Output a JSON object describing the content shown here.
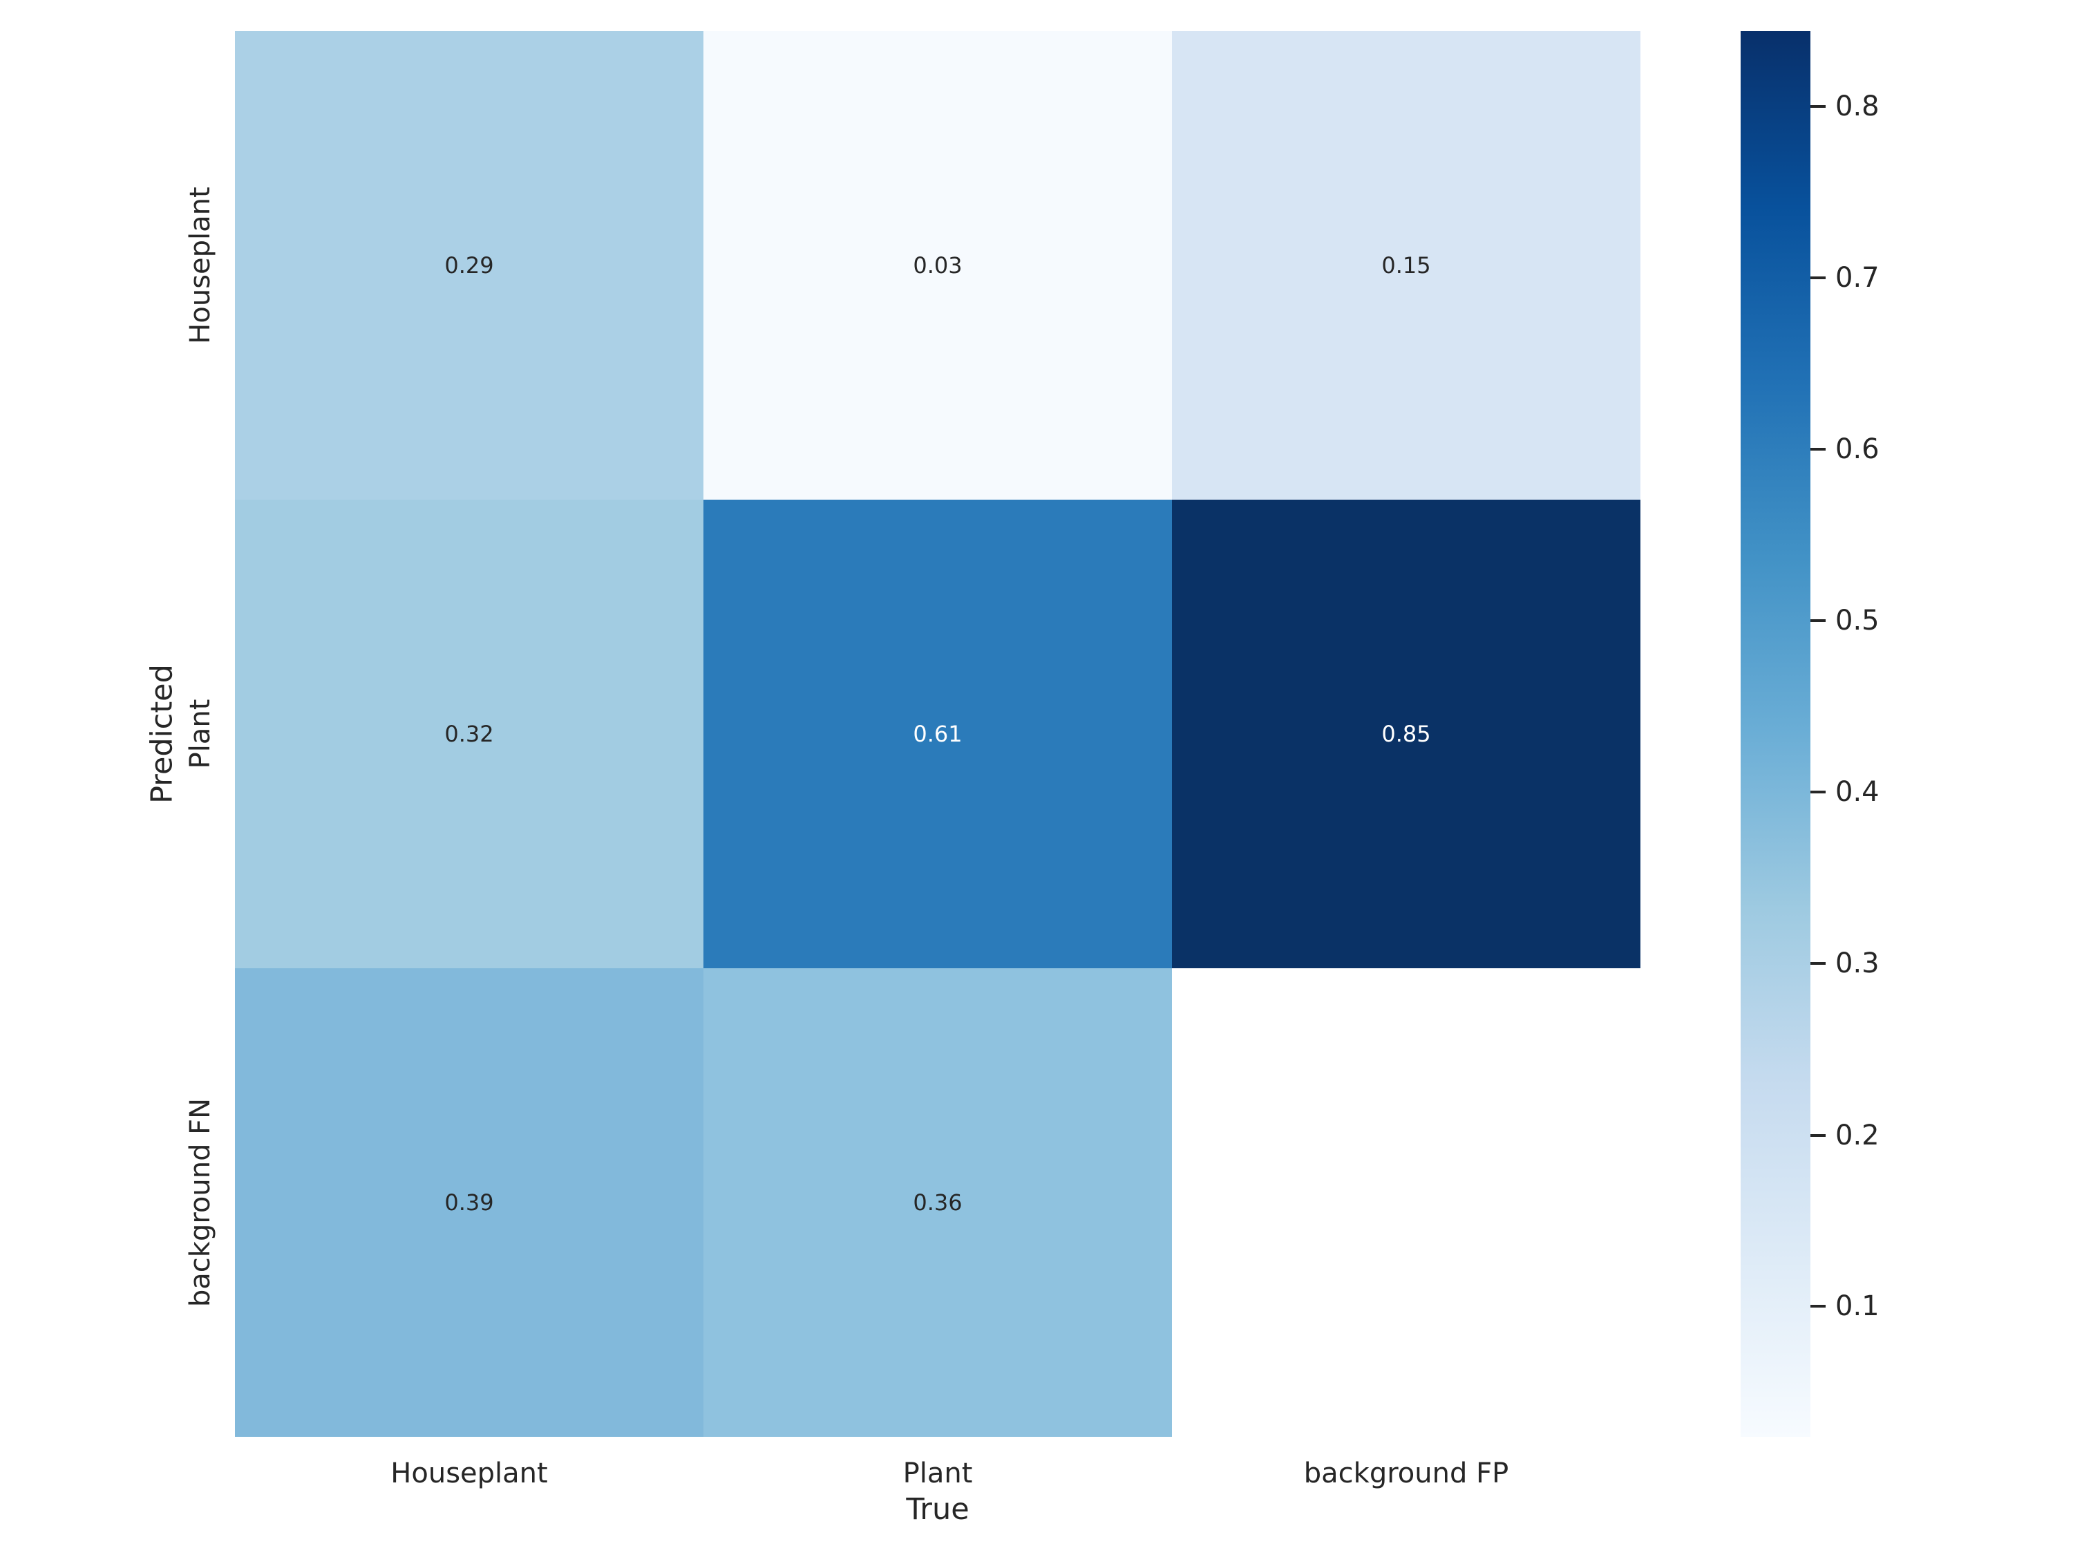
{
  "chart_data": {
    "type": "heatmap",
    "title": "",
    "xlabel": "True",
    "ylabel": "Predicted",
    "x_categories": [
      "Houseplant",
      "Plant",
      "background FP"
    ],
    "y_categories": [
      "Houseplant",
      "Plant",
      "background FN"
    ],
    "colormap": "Blues",
    "grid": false,
    "cells": [
      {
        "row": "Houseplant",
        "col": "Houseplant",
        "value": 0.29,
        "label": "0.29",
        "bg": "#abd0e6",
        "fg": "#262626"
      },
      {
        "row": "Houseplant",
        "col": "Plant",
        "value": 0.03,
        "label": "0.03",
        "bg": "#f6fafe",
        "fg": "#262626"
      },
      {
        "row": "Houseplant",
        "col": "background FP",
        "value": 0.15,
        "label": "0.15",
        "bg": "#d7e5f4",
        "fg": "#262626"
      },
      {
        "row": "Plant",
        "col": "Houseplant",
        "value": 0.32,
        "label": "0.32",
        "bg": "#a2cce2",
        "fg": "#262626"
      },
      {
        "row": "Plant",
        "col": "Plant",
        "value": 0.61,
        "label": "0.61",
        "bg": "#2b7bba",
        "fg": "#ffffff"
      },
      {
        "row": "Plant",
        "col": "background FP",
        "value": 0.85,
        "label": "0.85",
        "bg": "#0a3266",
        "fg": "#ffffff"
      },
      {
        "row": "background FN",
        "col": "Houseplant",
        "value": 0.39,
        "label": "0.39",
        "bg": "#82b9db",
        "fg": "#262626"
      },
      {
        "row": "background FN",
        "col": "Plant",
        "value": 0.36,
        "label": "0.36",
        "bg": "#8fc2df",
        "fg": "#262626"
      },
      {
        "row": "background FN",
        "col": "background FP",
        "value": null,
        "label": "",
        "bg": "#ffffff",
        "fg": "#262626"
      }
    ],
    "colorbar": {
      "vmin": 0.024,
      "vmax": 0.844,
      "tick_values": [
        0.8,
        0.7,
        0.6,
        0.5,
        0.4,
        0.3,
        0.2,
        0.1
      ],
      "tick_labels": [
        "0.8",
        "0.7",
        "0.6",
        "0.5",
        "0.4",
        "0.3",
        "0.2",
        "0.1"
      ],
      "gradient_stops_bottom_to_top": [
        "#f7fbff",
        "#deebf7",
        "#c6dbef",
        "#9ecae1",
        "#6baed6",
        "#4292c6",
        "#2171b5",
        "#08519c",
        "#08306b"
      ]
    }
  }
}
